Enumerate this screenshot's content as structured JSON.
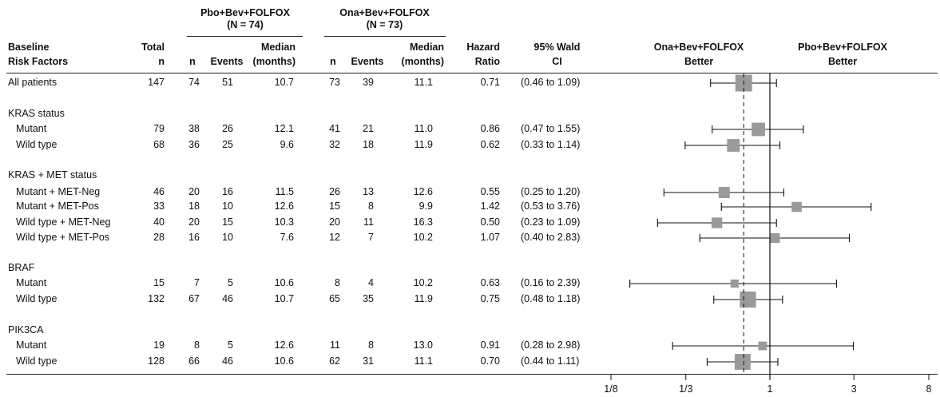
{
  "headers": {
    "group1": "Pbo+Bev+FOLFOX",
    "group1_n": "(N = 74)",
    "group2": "Ona+Bev+FOLFOX",
    "group2_n": "(N = 73)",
    "baseline_1": "Baseline",
    "baseline_2": "Risk Factors",
    "total_1": "Total",
    "total_2": "n",
    "n": "n",
    "events": "Events",
    "median_1": "Median",
    "median_2": "(months)",
    "hr_1": "Hazard",
    "hr_2": "Ratio",
    "ci_1": "95% Wald",
    "ci_2": "CI",
    "left_better_1": "Ona+Bev+FOLFOX",
    "left_better_2": "Better",
    "right_better_1": "Pbo+Bev+FOLFOX",
    "right_better_2": "Better"
  },
  "rows": [
    {
      "label": "All patients",
      "indent": false,
      "total": "147",
      "pn": "74",
      "pe": "51",
      "pm": "10.7",
      "on": "73",
      "oe": "39",
      "om": "11.1",
      "hr": "0.71",
      "ci": "(0.46 to 1.09)",
      "hrv": 0.71,
      "lo": 0.46,
      "hi": 1.09,
      "weight": 147
    },
    {
      "label": "KRAS status",
      "header": true
    },
    {
      "label": "Mutant",
      "indent": true,
      "total": "79",
      "pn": "38",
      "pe": "26",
      "pm": "12.1",
      "on": "41",
      "oe": "21",
      "om": "11.0",
      "hr": "0.86",
      "ci": "(0.47 to 1.55)",
      "hrv": 0.86,
      "lo": 0.47,
      "hi": 1.55,
      "weight": 79
    },
    {
      "label": "Wild type",
      "indent": true,
      "total": "68",
      "pn": "36",
      "pe": "25",
      "pm": "9.6",
      "on": "32",
      "oe": "18",
      "om": "11.9",
      "hr": "0.62",
      "ci": "(0.33 to 1.14)",
      "hrv": 0.62,
      "lo": 0.33,
      "hi": 1.14,
      "weight": 68
    },
    {
      "label": "KRAS + MET status",
      "header": true
    },
    {
      "label": "Mutant + MET-Neg",
      "indent": true,
      "total": "46",
      "pn": "20",
      "pe": "16",
      "pm": "11.5",
      "on": "26",
      "oe": "13",
      "om": "12.6",
      "hr": "0.55",
      "ci": "(0.25 to 1.20)",
      "hrv": 0.55,
      "lo": 0.25,
      "hi": 1.2,
      "weight": 46
    },
    {
      "label": "Mutant + MET-Pos",
      "indent": true,
      "total": "33",
      "pn": "18",
      "pe": "10",
      "pm": "12.6",
      "on": "15",
      "oe": "8",
      "om": "9.9",
      "hr": "1.42",
      "ci": "(0.53 to 3.76)",
      "hrv": 1.42,
      "lo": 0.53,
      "hi": 3.76,
      "weight": 33
    },
    {
      "label": "Wild type + MET-Neg",
      "indent": true,
      "total": "40",
      "pn": "20",
      "pe": "15",
      "pm": "10.3",
      "on": "20",
      "oe": "11",
      "om": "16.3",
      "hr": "0.50",
      "ci": "(0.23 to 1.09)",
      "hrv": 0.5,
      "lo": 0.23,
      "hi": 1.09,
      "weight": 40
    },
    {
      "label": "Wild type + MET-Pos",
      "indent": true,
      "total": "28",
      "pn": "16",
      "pe": "10",
      "pm": "7.6",
      "on": "12",
      "oe": "7",
      "om": "10.2",
      "hr": "1.07",
      "ci": "(0.40 to 2.83)",
      "hrv": 1.07,
      "lo": 0.4,
      "hi": 2.83,
      "weight": 28
    },
    {
      "label": "BRAF",
      "header": true
    },
    {
      "label": "Mutant",
      "indent": true,
      "total": "15",
      "pn": "7",
      "pe": "5",
      "pm": "10.6",
      "on": "8",
      "oe": "4",
      "om": "10.2",
      "hr": "0.63",
      "ci": "(0.16 to 2.39)",
      "hrv": 0.63,
      "lo": 0.16,
      "hi": 2.39,
      "weight": 15
    },
    {
      "label": "Wild type",
      "indent": true,
      "total": "132",
      "pn": "67",
      "pe": "46",
      "pm": "10.7",
      "on": "65",
      "oe": "35",
      "om": "11.9",
      "hr": "0.75",
      "ci": "(0.48 to 1.18)",
      "hrv": 0.75,
      "lo": 0.48,
      "hi": 1.18,
      "weight": 132
    },
    {
      "label": "PIK3CA",
      "header": true
    },
    {
      "label": "Mutant",
      "indent": true,
      "total": "19",
      "pn": "8",
      "pe": "5",
      "pm": "12.6",
      "on": "11",
      "oe": "8",
      "om": "13.0",
      "hr": "0.91",
      "ci": "(0.28 to 2.98)",
      "hrv": 0.91,
      "lo": 0.28,
      "hi": 2.98,
      "weight": 19
    },
    {
      "label": "Wild type",
      "indent": true,
      "total": "128",
      "pn": "66",
      "pe": "46",
      "pm": "10.6",
      "on": "62",
      "oe": "31",
      "om": "11.1",
      "hr": "0.70",
      "ci": "(0.44 to 1.11)",
      "hrv": 0.7,
      "lo": 0.44,
      "hi": 1.11,
      "weight": 128
    }
  ],
  "chart_data": {
    "type": "scatter",
    "subtype": "forest-plot",
    "xscale": "log",
    "xlim": [
      0.125,
      8
    ],
    "xticks": [
      0.125,
      0.333,
      1,
      3,
      8
    ],
    "xtick_labels": [
      "1/8",
      "1/3",
      "1",
      "3",
      "8"
    ],
    "reference_line": 1,
    "overall_line": 0.71,
    "colors": {
      "marker": "#9a9a9a",
      "line": "#111111"
    }
  }
}
